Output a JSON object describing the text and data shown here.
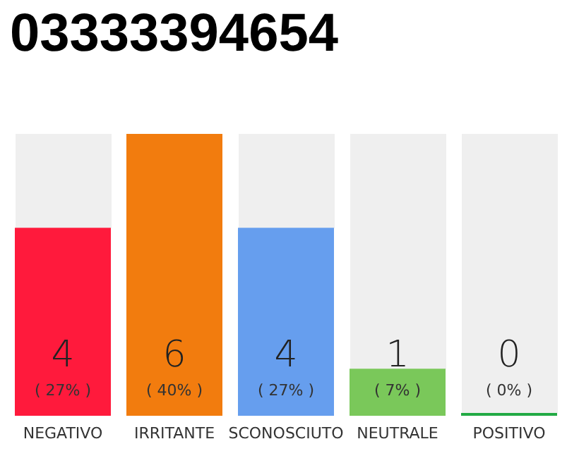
{
  "chart_data": {
    "type": "bar",
    "title": "03333394654",
    "categories": [
      "NEGATIVO",
      "IRRITANTE",
      "SCONOSCIUTO",
      "NEUTRALE",
      "POSITIVO"
    ],
    "values": [
      4,
      6,
      4,
      1,
      0
    ],
    "colors": [
      "#ff1a3c",
      "#f27c0e",
      "#669eee",
      "#7ac85a",
      "#22aa44"
    ],
    "value_labels": [
      "4\n( 27% )",
      "6\n( 40% )",
      "4\n( 27% )",
      "1\n( 7% )",
      "0\n( 0% )"
    ]
  }
}
